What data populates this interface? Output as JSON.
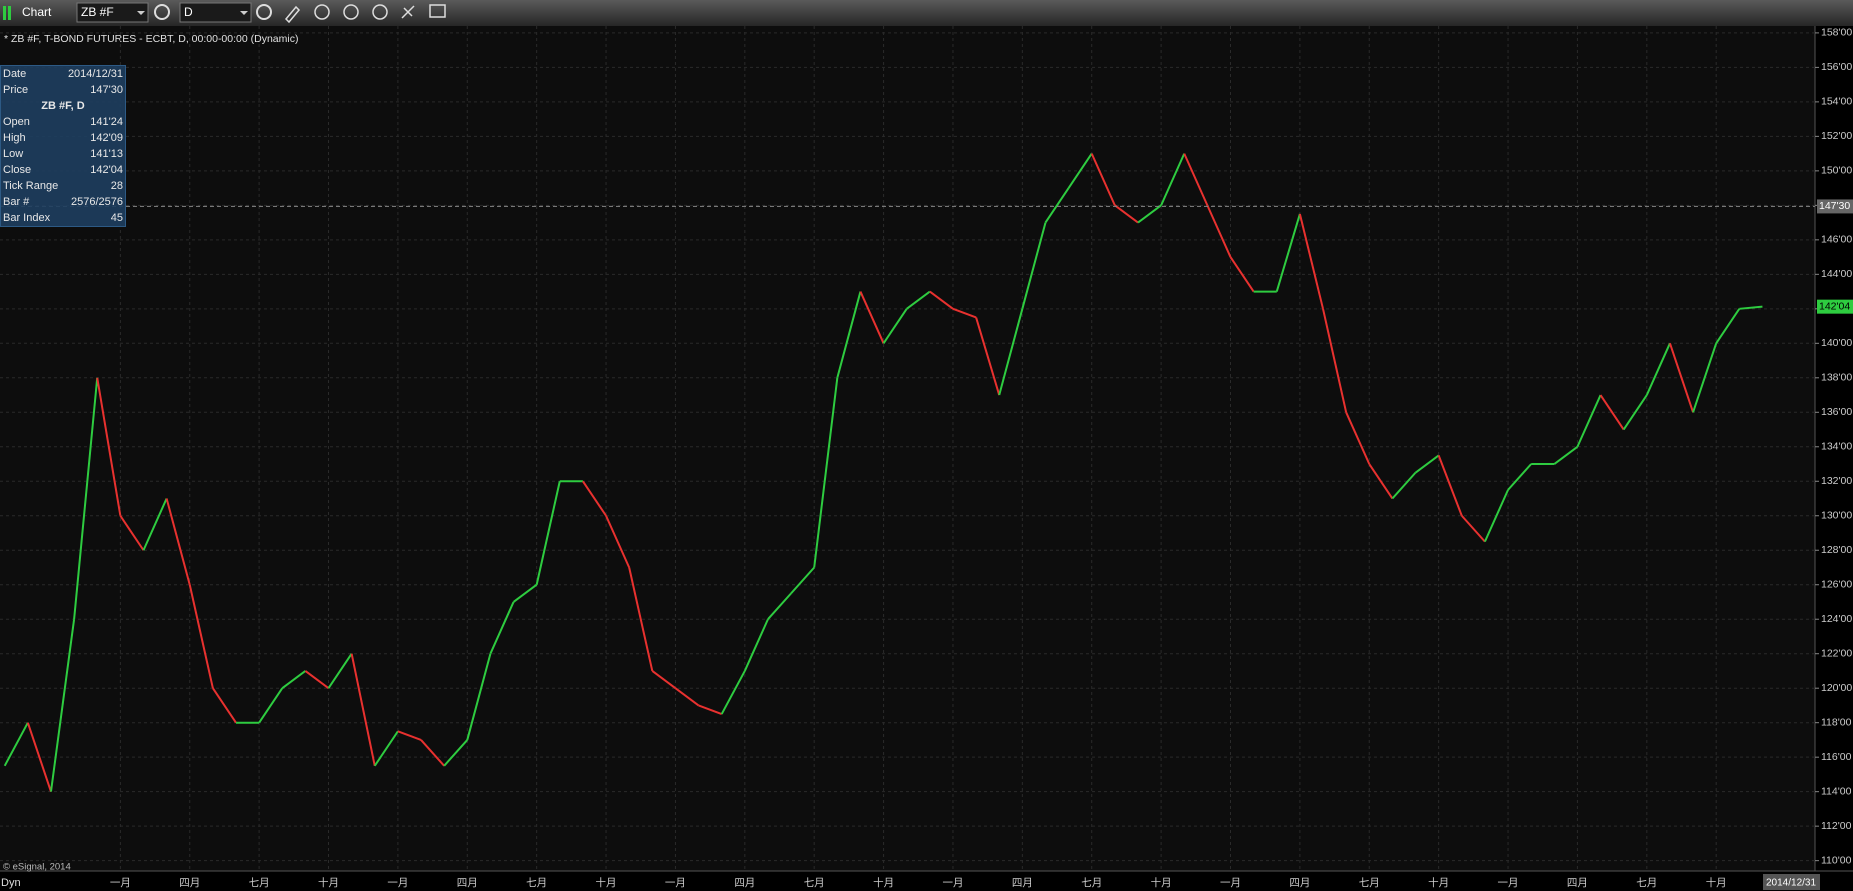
{
  "toolbar": {
    "title": "Chart",
    "symbol": "ZB #F",
    "interval": "D"
  },
  "chart_data": {
    "type": "line",
    "title": "* ZB #F, T-BOND FUTURES - ECBT, D, 00:00-00:00 (Dynamic)",
    "categories": [
      null,
      null,
      null,
      null,
      null,
      "一月",
      null,
      null,
      "四月",
      null,
      null,
      "七月",
      null,
      null,
      "十月",
      null,
      null,
      "一月",
      null,
      null,
      "四月",
      null,
      null,
      "七月",
      null,
      null,
      "十月",
      null,
      null,
      "一月",
      null,
      null,
      "四月",
      null,
      null,
      "七月",
      null,
      null,
      "十月",
      null,
      null,
      "一月",
      null,
      null,
      "四月",
      null,
      null,
      "七月",
      null,
      null,
      "十月",
      null,
      null,
      "一月",
      null,
      null,
      "四月",
      null,
      null,
      "七月",
      null,
      null,
      "十月",
      null,
      null,
      "一月",
      null,
      null,
      "四月",
      null,
      null,
      "七月",
      null,
      null,
      "十月",
      null,
      null
    ],
    "values": [
      115.5,
      118,
      114,
      124,
      138,
      130,
      128,
      131,
      126,
      120,
      118,
      118,
      120,
      121,
      120,
      122,
      115.5,
      117.5,
      117,
      115.5,
      117,
      122,
      125,
      126,
      132,
      132,
      130,
      127,
      121,
      120,
      119,
      118.5,
      121,
      124,
      125.5,
      127,
      138,
      143,
      140,
      142,
      143,
      142,
      141.5,
      137,
      142,
      147,
      149,
      151,
      148,
      147,
      148,
      151,
      148,
      145,
      143,
      143,
      147.5,
      142,
      136,
      133,
      131,
      132.5,
      133.5,
      130,
      128.5,
      131.5,
      133,
      133,
      134,
      137,
      135,
      137,
      140,
      136,
      140,
      142,
      142.125
    ],
    "up_color": "#2ecc40",
    "down_color": "#e8312f",
    "ylim": [
      109.4,
      158.4
    ],
    "yticks": [
      {
        "value": 110,
        "label": "110'00"
      },
      {
        "value": 112,
        "label": "112'00"
      },
      {
        "value": 114,
        "label": "114'00"
      },
      {
        "value": 116,
        "label": "116'00"
      },
      {
        "value": 118,
        "label": "118'00"
      },
      {
        "value": 120,
        "label": "120'00"
      },
      {
        "value": 122,
        "label": "122'00"
      },
      {
        "value": 124,
        "label": "124'00"
      },
      {
        "value": 126,
        "label": "126'00"
      },
      {
        "value": 128,
        "label": "128'00"
      },
      {
        "value": 130,
        "label": "130'00"
      },
      {
        "value": 132,
        "label": "132'00"
      },
      {
        "value": 134,
        "label": "134'00"
      },
      {
        "value": 136,
        "label": "136'00"
      },
      {
        "value": 138,
        "label": "138'00"
      },
      {
        "value": 140,
        "label": "140'00"
      },
      {
        "value": 142,
        "label": "142'00"
      },
      {
        "value": 144,
        "label": "144'00"
      },
      {
        "value": 146,
        "label": "146'00"
      },
      {
        "value": 148,
        "label": "148'00"
      },
      {
        "value": 150,
        "label": "150'00"
      },
      {
        "value": 152,
        "label": "152'00"
      },
      {
        "value": 154,
        "label": "154'00"
      },
      {
        "value": 156,
        "label": "156'00"
      },
      {
        "value": 158,
        "label": "158'00"
      }
    ],
    "grid": true,
    "cursor": {
      "value": 147.9375,
      "label": "147'30"
    },
    "last_price": {
      "value": 142.125,
      "label": "142'04"
    },
    "cursor_date": "2014/12/31"
  },
  "data_window": {
    "top_rows": [
      {
        "label": "Date",
        "value": "2014/12/31"
      },
      {
        "label": "Price",
        "value": "147'30"
      }
    ],
    "title": "ZB #F, D",
    "rows": [
      {
        "label": "Open",
        "value": "141'24"
      },
      {
        "label": "High",
        "value": "142'09"
      },
      {
        "label": "Low",
        "value": "141'13"
      },
      {
        "label": "Close",
        "value": "142'04"
      },
      {
        "label": "Tick Range",
        "value": "28"
      },
      {
        "label": "Bar #",
        "value": "2576/2576"
      },
      {
        "label": "Bar Index",
        "value": "45"
      }
    ]
  },
  "footer": {
    "copyright": "© eSignal, 2014",
    "mode": "Dyn"
  }
}
